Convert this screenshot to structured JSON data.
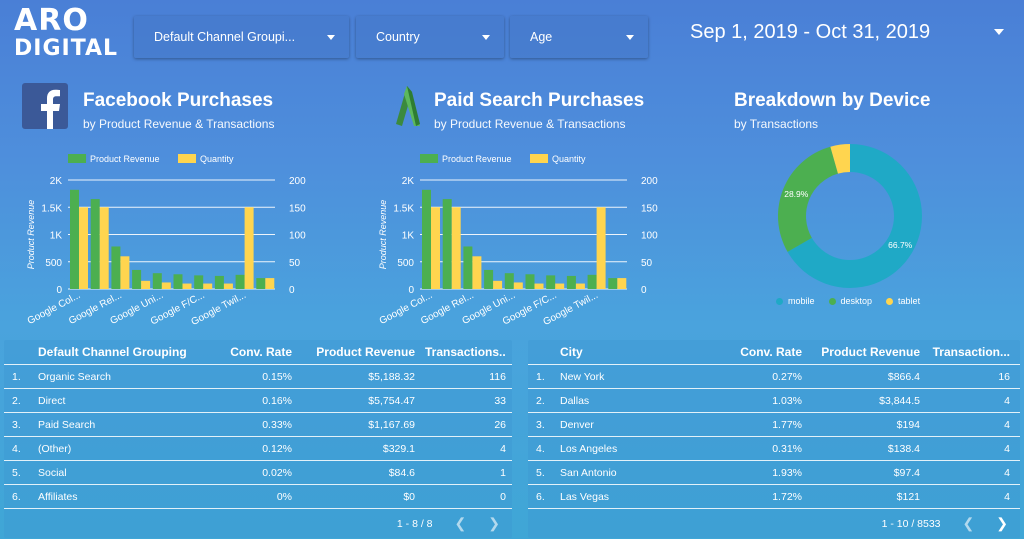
{
  "logo": {
    "line1": "ARO",
    "line2": "DIGITAL"
  },
  "filters": [
    {
      "label": "Default Channel Groupi..."
    },
    {
      "label": "Country"
    },
    {
      "label": "Age"
    }
  ],
  "date_range": "Sep 1, 2019 - Oct 31, 2019",
  "facebook": {
    "title": "Facebook Purchases",
    "subtitle": "by Product Revenue & Transactions",
    "icon": "facebook-icon"
  },
  "paid_search": {
    "title": "Paid Search Purchases",
    "subtitle": "by Product Revenue & Transactions",
    "icon": "google-ads-icon"
  },
  "device": {
    "title": "Breakdown by Device",
    "subtitle": "by Transactions"
  },
  "colors": {
    "revenue": "#4caf50",
    "quantity": "#ffd54f",
    "mobile": "#1fa9c6",
    "desktop": "#4caf50",
    "tablet": "#ffd54f"
  },
  "chart_data": [
    {
      "type": "bar",
      "id": "facebook",
      "categories": [
        "Google Col...",
        "",
        "Google Rel...",
        "",
        "Google Uni...",
        "",
        "Google F/C...",
        "",
        "Google Twil...",
        ""
      ],
      "ylabel": "Product Revenue",
      "yticks_left": [
        "2K",
        "1.5K",
        "1K",
        "500",
        "0"
      ],
      "yticks_right": [
        "200",
        "150",
        "100",
        "50",
        "0"
      ],
      "ylim_left": [
        0,
        2000
      ],
      "ylim_right": [
        0,
        200
      ],
      "legend": [
        "Product Revenue",
        "Quantity"
      ],
      "series": [
        {
          "name": "Product Revenue",
          "values": [
            1820,
            1650,
            780,
            350,
            290,
            270,
            250,
            240,
            260,
            200
          ]
        },
        {
          "name": "Quantity",
          "values": [
            150,
            150,
            60,
            15,
            12,
            10,
            10,
            10,
            150,
            20
          ]
        }
      ]
    },
    {
      "type": "bar",
      "id": "paid_search",
      "categories": [
        "Google Col...",
        "",
        "Google Rel...",
        "",
        "Google Uni...",
        "",
        "Google F/C...",
        "",
        "Google Twil...",
        ""
      ],
      "ylabel": "Product Revenue",
      "yticks_left": [
        "2K",
        "1.5K",
        "1K",
        "500",
        "0"
      ],
      "yticks_right": [
        "200",
        "150",
        "100",
        "50",
        "0"
      ],
      "ylim_left": [
        0,
        2000
      ],
      "ylim_right": [
        0,
        200
      ],
      "legend": [
        "Product Revenue",
        "Quantity"
      ],
      "series": [
        {
          "name": "Product Revenue",
          "values": [
            1820,
            1650,
            780,
            350,
            290,
            270,
            250,
            240,
            260,
            200
          ]
        },
        {
          "name": "Quantity",
          "values": [
            150,
            150,
            60,
            15,
            12,
            10,
            10,
            10,
            150,
            20
          ]
        }
      ]
    },
    {
      "type": "pie",
      "id": "device",
      "labels": [
        "mobile",
        "desktop",
        "tablet"
      ],
      "values": [
        66.7,
        28.9,
        4.4
      ],
      "value_labels": [
        "66.7%",
        "28.9%",
        ""
      ],
      "legend": [
        "mobile",
        "desktop",
        "tablet"
      ]
    }
  ],
  "table_channels": {
    "headers": [
      "Default Channel Grouping",
      "Conv. Rate",
      "Product Revenue",
      "Transactions..."
    ],
    "rows": [
      {
        "n": "1.",
        "name": "Organic Search",
        "conv": "0.15%",
        "rev": "$5,188.32",
        "tx": "116"
      },
      {
        "n": "2.",
        "name": "Direct",
        "conv": "0.16%",
        "rev": "$5,754.47",
        "tx": "33"
      },
      {
        "n": "3.",
        "name": "Paid Search",
        "conv": "0.33%",
        "rev": "$1,167.69",
        "tx": "26"
      },
      {
        "n": "4.",
        "name": "(Other)",
        "conv": "0.12%",
        "rev": "$329.1",
        "tx": "4"
      },
      {
        "n": "5.",
        "name": "Social",
        "conv": "0.02%",
        "rev": "$84.6",
        "tx": "1"
      },
      {
        "n": "6.",
        "name": "Affiliates",
        "conv": "0%",
        "rev": "$0",
        "tx": "0"
      }
    ],
    "pager": "1 - 8 / 8"
  },
  "table_cities": {
    "headers": [
      "City",
      "Conv. Rate",
      "Product Revenue",
      "Transaction..."
    ],
    "rows": [
      {
        "n": "1.",
        "name": "New York",
        "conv": "0.27%",
        "rev": "$866.4",
        "tx": "16"
      },
      {
        "n": "2.",
        "name": "Dallas",
        "conv": "1.03%",
        "rev": "$3,844.5",
        "tx": "4"
      },
      {
        "n": "3.",
        "name": "Denver",
        "conv": "1.77%",
        "rev": "$194",
        "tx": "4"
      },
      {
        "n": "4.",
        "name": "Los Angeles",
        "conv": "0.31%",
        "rev": "$138.4",
        "tx": "4"
      },
      {
        "n": "5.",
        "name": "San Antonio",
        "conv": "1.93%",
        "rev": "$97.4",
        "tx": "4"
      },
      {
        "n": "6.",
        "name": "Las Vegas",
        "conv": "1.72%",
        "rev": "$121",
        "tx": "4"
      }
    ],
    "pager": "1 - 10 / 8533"
  }
}
